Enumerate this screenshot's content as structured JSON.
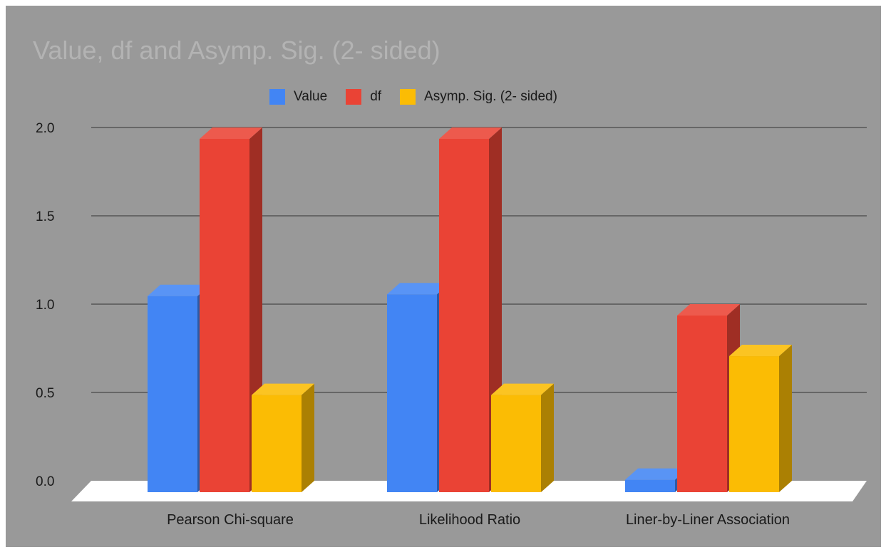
{
  "chart_data": {
    "type": "bar",
    "title": "Value, df and Asymp. Sig. (2- sided)",
    "xlabel": "",
    "ylabel": "",
    "categories": [
      "Pearson Chi-square",
      "Likelihood Ratio",
      "Liner-by-Liner Association"
    ],
    "series": [
      {
        "name": "Value",
        "color": "#4285f4",
        "values": [
          1.11,
          1.12,
          0.07
        ]
      },
      {
        "name": "df",
        "color": "#ea4335",
        "values": [
          2,
          2,
          1
        ]
      },
      {
        "name": "Asymp. Sig. (2- sided)",
        "color": "#fbbc04",
        "values": [
          0.55,
          0.55,
          0.77
        ]
      }
    ],
    "ylim": [
      0,
      2.0
    ],
    "yticks": [
      "0.0",
      "0.5",
      "1.0",
      "1.5",
      "2.0"
    ],
    "grid": true,
    "legend_position": "top",
    "style": "3d"
  }
}
